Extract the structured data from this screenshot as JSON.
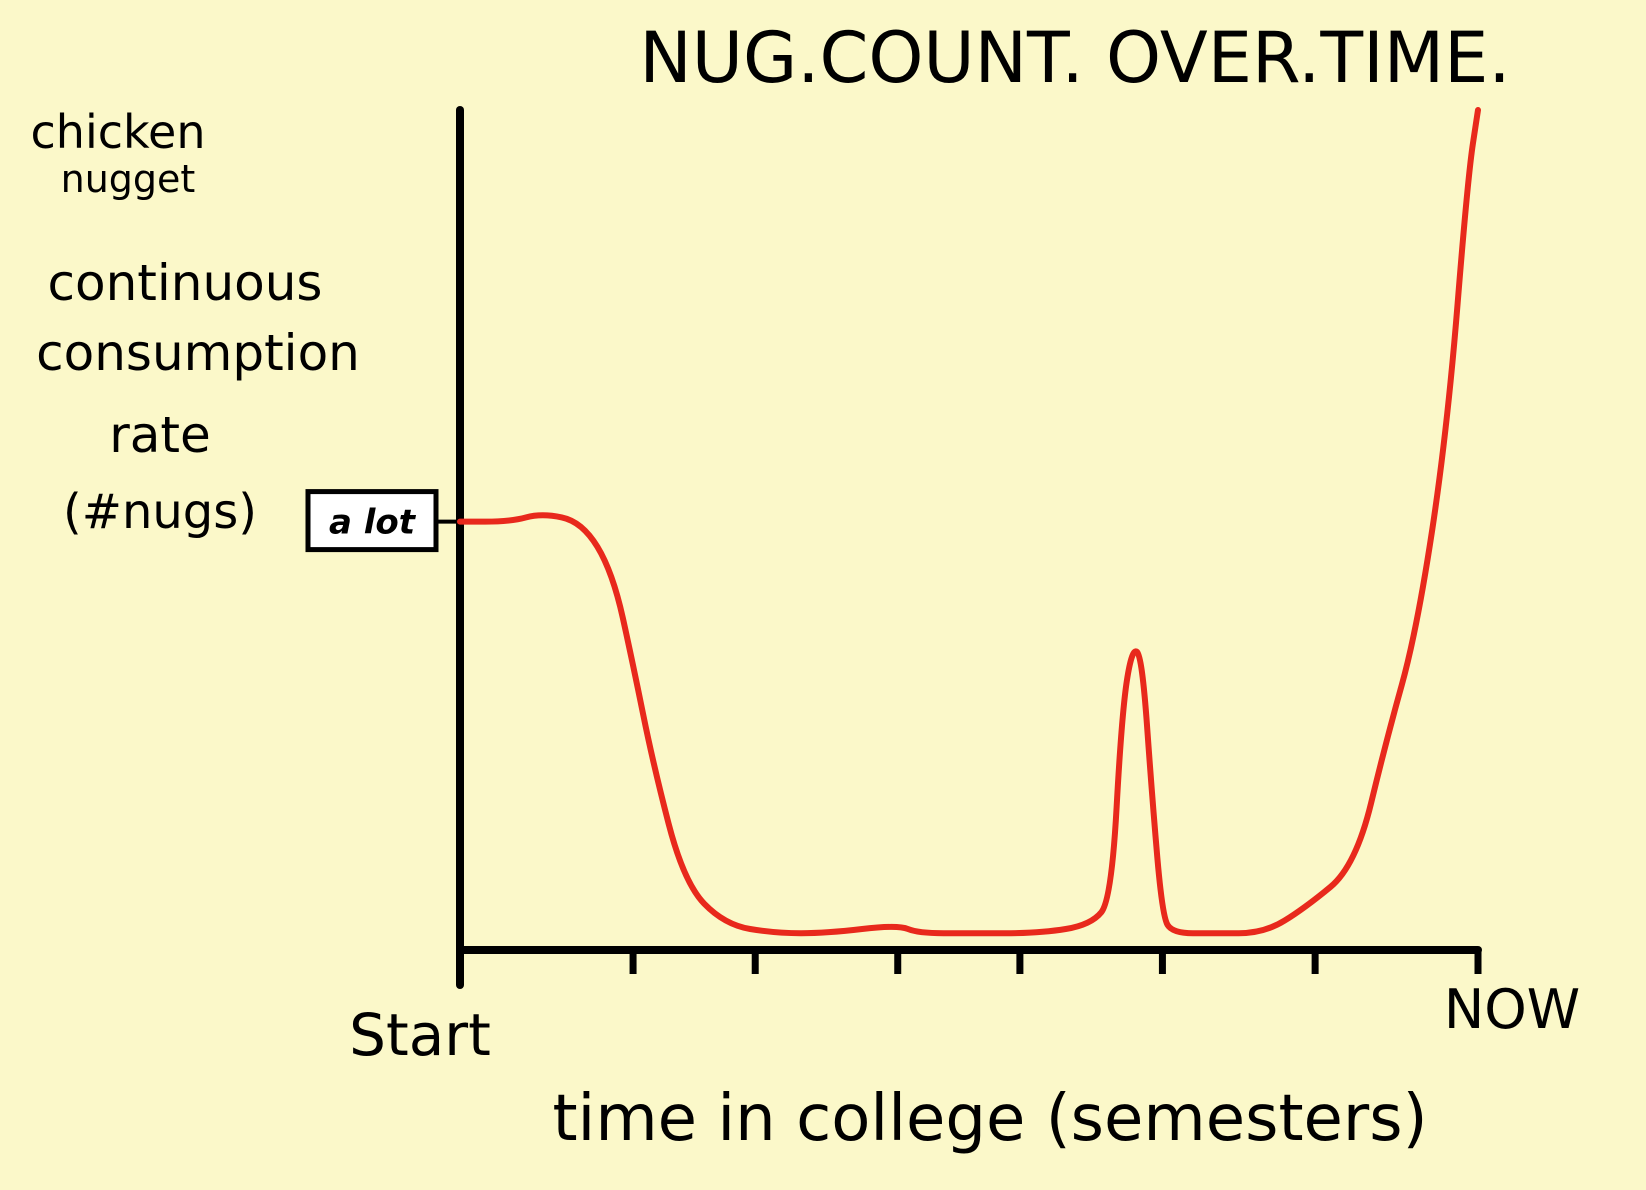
{
  "chart_data": {
    "type": "line",
    "title": "NUG.COUNT. OVER.TIME.",
    "xlabel": "time in college (semesters)",
    "ylabel": [
      "chicken",
      "nugget",
      "continuous",
      "consumption",
      "rate",
      "(#nugs)"
    ],
    "x_tick_labels": {
      "start": "Start",
      "end": "NOW"
    },
    "y_tick_label": "a lot",
    "x_unit": "fraction of time in college (0 = Start, 1 = NOW)",
    "ylim": [
      0,
      1
    ],
    "xlim": [
      0,
      1
    ],
    "minor_ticks_x": [
      0.17,
      0.29,
      0.43,
      0.55,
      0.69,
      0.84
    ],
    "y_tick_value": 0.51,
    "series": [
      {
        "color": "#e8291c",
        "points": [
          [
            0.0,
            0.51
          ],
          [
            0.05,
            0.51
          ],
          [
            0.08,
            0.52
          ],
          [
            0.12,
            0.51
          ],
          [
            0.15,
            0.45
          ],
          [
            0.17,
            0.34
          ],
          [
            0.19,
            0.22
          ],
          [
            0.22,
            0.08
          ],
          [
            0.26,
            0.03
          ],
          [
            0.31,
            0.02
          ],
          [
            0.36,
            0.02
          ],
          [
            0.43,
            0.03
          ],
          [
            0.45,
            0.02
          ],
          [
            0.5,
            0.02
          ],
          [
            0.57,
            0.02
          ],
          [
            0.62,
            0.03
          ],
          [
            0.64,
            0.06
          ],
          [
            0.65,
            0.28
          ],
          [
            0.66,
            0.36
          ],
          [
            0.67,
            0.35
          ],
          [
            0.68,
            0.18
          ],
          [
            0.69,
            0.04
          ],
          [
            0.7,
            0.02
          ],
          [
            0.74,
            0.02
          ],
          [
            0.79,
            0.02
          ],
          [
            0.83,
            0.05
          ],
          [
            0.88,
            0.1
          ],
          [
            0.91,
            0.25
          ],
          [
            0.94,
            0.38
          ],
          [
            0.97,
            0.62
          ],
          [
            0.99,
            0.92
          ],
          [
            1.0,
            1.0
          ]
        ]
      }
    ]
  }
}
